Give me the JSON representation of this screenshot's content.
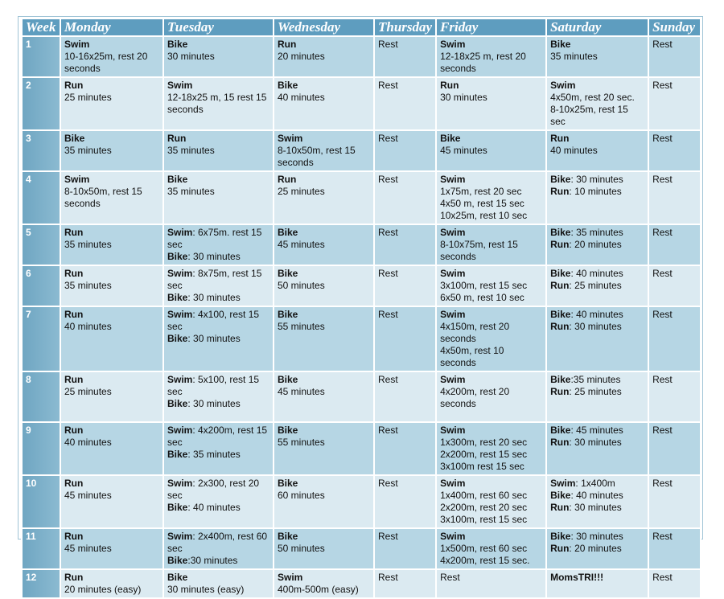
{
  "table": {
    "header": [
      "Week",
      "Monday",
      "Tuesday",
      "Wednesday",
      "Thursday",
      "Friday",
      "Saturday",
      "Sunday"
    ],
    "rows": [
      {
        "week": "1",
        "cells": [
          [
            {
              "b": "Swim"
            },
            {
              "t": "10-16x25m, rest 20 seconds"
            }
          ],
          [
            {
              "b": "Bike"
            },
            {
              "t": "30 minutes"
            }
          ],
          [
            {
              "b": "Run"
            },
            {
              "t": "20 minutes"
            }
          ],
          [
            {
              "t": "Rest"
            }
          ],
          [
            {
              "b": "Swim"
            },
            {
              "t": "12-18x25 m, rest 20 seconds"
            }
          ],
          [
            {
              "b": "Bike"
            },
            {
              "t": "35 minutes"
            }
          ],
          [
            {
              "t": "Rest"
            }
          ]
        ]
      },
      {
        "week": "2",
        "cells": [
          [
            {
              "b": "Run"
            },
            {
              "t": "25 minutes"
            }
          ],
          [
            {
              "b": "Swim"
            },
            {
              "t": "12-18x25 m, 15 rest 15 seconds"
            }
          ],
          [
            {
              "b": "Bike"
            },
            {
              "t": "40 minutes"
            }
          ],
          [
            {
              "t": "Rest"
            }
          ],
          [
            {
              "b": "Run"
            },
            {
              "t": "30 minutes"
            }
          ],
          [
            {
              "b": "Swim"
            },
            {
              "t": "4x50m, rest 20 sec."
            },
            {
              "t": "8-10x25m, rest 15 sec"
            }
          ],
          [
            {
              "t": "Rest"
            }
          ]
        ]
      },
      {
        "week": "3",
        "cells": [
          [
            {
              "b": "Bike"
            },
            {
              "t": "35 minutes"
            }
          ],
          [
            {
              "b": "Run"
            },
            {
              "t": "35 minutes"
            }
          ],
          [
            {
              "b": "Swim"
            },
            {
              "t": "8-10x50m, rest 15 seconds"
            }
          ],
          [
            {
              "t": "Rest"
            }
          ],
          [
            {
              "b": "Bike"
            },
            {
              "t": "45 minutes"
            }
          ],
          [
            {
              "b": "Run"
            },
            {
              "t": "40 minutes"
            }
          ],
          [
            {
              "t": "Rest"
            }
          ]
        ]
      },
      {
        "week": "4",
        "cells": [
          [
            {
              "b": "Swim"
            },
            {
              "t": "8-10x50m, rest 15 seconds"
            }
          ],
          [
            {
              "b": "Bike"
            },
            {
              "t": "35 minutes"
            }
          ],
          [
            {
              "b": "Run"
            },
            {
              "t": "25 minutes"
            }
          ],
          [
            {
              "t": "Rest"
            }
          ],
          [
            {
              "b": "Swim"
            },
            {
              "t": "1x75m, rest 20 sec"
            },
            {
              "t": "4x50 m, rest  15 sec"
            },
            {
              "t": "10x25m, rest 10 sec"
            }
          ],
          [
            {
              "b": "Bike",
              "t": ": 30 minutes"
            },
            {
              "b": "Run",
              "t": ": 10 minutes"
            }
          ],
          [
            {
              "t": "Rest"
            }
          ]
        ]
      },
      {
        "week": "5",
        "cells": [
          [
            {
              "b": "Run"
            },
            {
              "t": "35 minutes"
            }
          ],
          [
            {
              "b": "Swim",
              "t": ": 6x75m. rest 15 sec"
            },
            {
              "b": "Bike",
              "t": ": 30 minutes"
            }
          ],
          [
            {
              "b": "Bike"
            },
            {
              "t": "45 minutes"
            }
          ],
          [
            {
              "t": "Rest"
            }
          ],
          [
            {
              "b": "Swim"
            },
            {
              "t": "8-10x75m, rest 15 seconds"
            }
          ],
          [
            {
              "b": "Bike",
              "t": ": 35 minutes"
            },
            {
              "b": "Run",
              "t": ": 20 minutes"
            }
          ],
          [
            {
              "t": "Rest"
            }
          ]
        ]
      },
      {
        "week": "6",
        "cells": [
          [
            {
              "b": "Run"
            },
            {
              "t": "35 minutes"
            }
          ],
          [
            {
              "b": "Swim",
              "t": ": 8x75m, rest 15 sec"
            },
            {
              "b": "Bike",
              "t": ": 30 minutes"
            }
          ],
          [
            {
              "b": "Bike"
            },
            {
              "t": "50 minutes"
            }
          ],
          [
            {
              "t": "Rest"
            }
          ],
          [
            {
              "b": "Swim"
            },
            {
              "t": "3x100m, rest 15 sec"
            },
            {
              "t": "6x50 m, rest 10 sec"
            }
          ],
          [
            {
              "b": "Bike",
              "t": ": 40 minutes"
            },
            {
              "b": "Run",
              "t": ": 25 minutes"
            }
          ],
          [
            {
              "t": "Rest"
            }
          ]
        ]
      },
      {
        "week": "7",
        "cells": [
          [
            {
              "b": "Run"
            },
            {
              "t": "40 minutes"
            }
          ],
          [
            {
              "b": "Swim",
              "t": ": 4x100, rest 15 sec"
            },
            {
              "b": "Bike",
              "t": ": 30 minutes"
            }
          ],
          [
            {
              "b": "Bike"
            },
            {
              "t": "55 minutes"
            }
          ],
          [
            {
              "t": "Rest"
            }
          ],
          [
            {
              "b": "Swim"
            },
            {
              "t": "4x150m, rest 20 seconds"
            },
            {
              "t": "4x50m, rest 10 seconds"
            }
          ],
          [
            {
              "b": "Bike",
              "t": ": 40 minutes"
            },
            {
              "b": "Run",
              "t": ": 30 minutes"
            }
          ],
          [
            {
              "t": "Rest"
            }
          ]
        ]
      },
      {
        "week": "8",
        "cells": [
          [
            {
              "b": "Run"
            },
            {
              "t": "25 minutes"
            }
          ],
          [
            {
              "b": "Swim",
              "t": ": 5x100, rest 15 sec"
            },
            {
              "b": "Bike",
              "t": ": 30 minutes"
            }
          ],
          [
            {
              "b": "Bike"
            },
            {
              "t": "45 minutes"
            }
          ],
          [
            {
              "t": "Rest"
            }
          ],
          [
            {
              "b": "Swim"
            },
            {
              "t": "4x200m, rest 20 seconds"
            }
          ],
          [
            {
              "b": "Bike",
              "t": ":35 minutes"
            },
            {
              "b": "Run",
              "t": ": 25 minutes"
            }
          ],
          [
            {
              "t": "Rest"
            }
          ]
        ]
      },
      {
        "week": "9",
        "cells": [
          [
            {
              "b": "Run"
            },
            {
              "t": "40 minutes"
            }
          ],
          [
            {
              "b": "Swim",
              "t": ": 4x200m, rest 15 sec"
            },
            {
              "b": "Bike",
              "t": ": 35 minutes"
            }
          ],
          [
            {
              "b": "Bike"
            },
            {
              "t": "55 minutes"
            }
          ],
          [
            {
              "t": "Rest"
            }
          ],
          [
            {
              "b": "Swim"
            },
            {
              "t": "1x300m, rest 20 sec"
            },
            {
              "t": "2x200m, rest 15 sec"
            },
            {
              "t": "3x100m rest 15 sec"
            }
          ],
          [
            {
              "b": "Bike",
              "t": ": 45 minutes"
            },
            {
              "b": "Run",
              "t": ": 30 minutes"
            }
          ],
          [
            {
              "t": "Rest"
            }
          ]
        ]
      },
      {
        "week": "10",
        "cells": [
          [
            {
              "b": "Run"
            },
            {
              "t": "45 minutes"
            }
          ],
          [
            {
              "b": "Swim",
              "t": ": 2x300, rest 20 sec"
            },
            {
              "b": "Bike",
              "t": ": 40 minutes"
            }
          ],
          [
            {
              "b": "Bike"
            },
            {
              "t": "60 minutes"
            }
          ],
          [
            {
              "t": "Rest"
            }
          ],
          [
            {
              "b": "Swim"
            },
            {
              "t": "1x400m, rest 60 sec"
            },
            {
              "t": "2x200m, rest 20 sec"
            },
            {
              "t": "3x100m, rest 15 sec"
            }
          ],
          [
            {
              "b": "Swim",
              "t": ": 1x400m"
            },
            {
              "b": "Bike",
              "t": ": 40 minutes"
            },
            {
              "b": "Run",
              "t": ": 30 minutes"
            }
          ],
          [
            {
              "t": "Rest"
            }
          ]
        ]
      },
      {
        "week": "11",
        "cells": [
          [
            {
              "b": "Run"
            },
            {
              "t": "45 minutes"
            }
          ],
          [
            {
              "b": "Swim",
              "t": ": 2x400m, rest 60 sec"
            },
            {
              "b": "Bike",
              "t": ":30 minutes"
            }
          ],
          [
            {
              "b": "Bike"
            },
            {
              "t": "50 minutes"
            }
          ],
          [
            {
              "t": "Rest"
            }
          ],
          [
            {
              "b": "Swim"
            },
            {
              "t": "1x500m, rest 60 sec"
            },
            {
              "t": "4x200m, rest 15 sec."
            }
          ],
          [
            {
              "b": "Bike",
              "t": ": 30 minutes"
            },
            {
              "b": "Run",
              "t": ": 20 minutes"
            }
          ],
          [
            {
              "t": "Rest"
            }
          ]
        ]
      },
      {
        "week": "12",
        "cells": [
          [
            {
              "b": "Run"
            },
            {
              "t": "20 minutes (easy)"
            }
          ],
          [
            {
              "b": "Bike"
            },
            {
              "t": "30 minutes (easy)"
            }
          ],
          [
            {
              "b": "Swim"
            },
            {
              "t": "400m-500m (easy)"
            }
          ],
          [
            {
              "t": "Rest"
            }
          ],
          [
            {
              "t": "Rest"
            }
          ],
          [
            {
              "b": "MomsTRI!!!"
            }
          ],
          [
            {
              "t": "Rest"
            }
          ]
        ]
      }
    ]
  }
}
